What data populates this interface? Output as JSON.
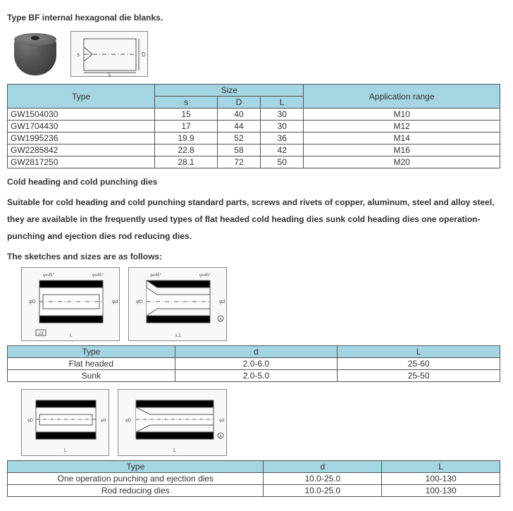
{
  "title1": "Type BF internal hexagonal die blanks.",
  "table1": {
    "headers": {
      "type": "Type",
      "size": "Size",
      "s": "s",
      "d": "D",
      "l": "L",
      "app": "Application range"
    },
    "rows": [
      {
        "type": "GW1504030",
        "s": "15",
        "d": "40",
        "l": "30",
        "app": "M10"
      },
      {
        "type": "GW1704430",
        "s": "17",
        "d": "44",
        "l": "30",
        "app": "M12"
      },
      {
        "type": "GW1995236",
        "s": "19.9",
        "d": "52",
        "l": "36",
        "app": "M14"
      },
      {
        "type": "GW2285842",
        "s": "22.8",
        "d": "58",
        "l": "42",
        "app": "M16"
      },
      {
        "type": "GW2817250",
        "s": "28.1",
        "d": "72",
        "l": "50",
        "app": "M20"
      }
    ]
  },
  "heading2": "Cold heading and cold punching dies",
  "para1": "Suitable for cold heading and cold punching standard parts, screws and rivets of copper, aluminum, steel and alloy steel, they are available in the frequently used types of flat headed cold heading dies sunk cold heading dies one operation-punching and ejection dies rod reducing dies.",
  "heading3": "The sketches and sizes are as follows:",
  "table2": {
    "headers": {
      "type": "Type",
      "d": "d",
      "l": "L"
    },
    "rows": [
      {
        "type": "Flat headed",
        "d": "2.0-6.0",
        "l": "25-60"
      },
      {
        "type": "Sunk",
        "d": "2.0-5.0",
        "l": "25-50"
      }
    ]
  },
  "table3": {
    "headers": {
      "type": "Type",
      "d": "d",
      "l": "L"
    },
    "rows": [
      {
        "type": "One operation punching and ejection dies",
        "d": "10.0-25.0",
        "l": "100-130"
      },
      {
        "type": "Rod reducing dies",
        "d": "10.0-25.0",
        "l": "100-130"
      }
    ]
  },
  "colors": {
    "header_bg": "#a4d5e2",
    "border": "#555555",
    "text": "#333333",
    "bg": "#ffffff"
  }
}
